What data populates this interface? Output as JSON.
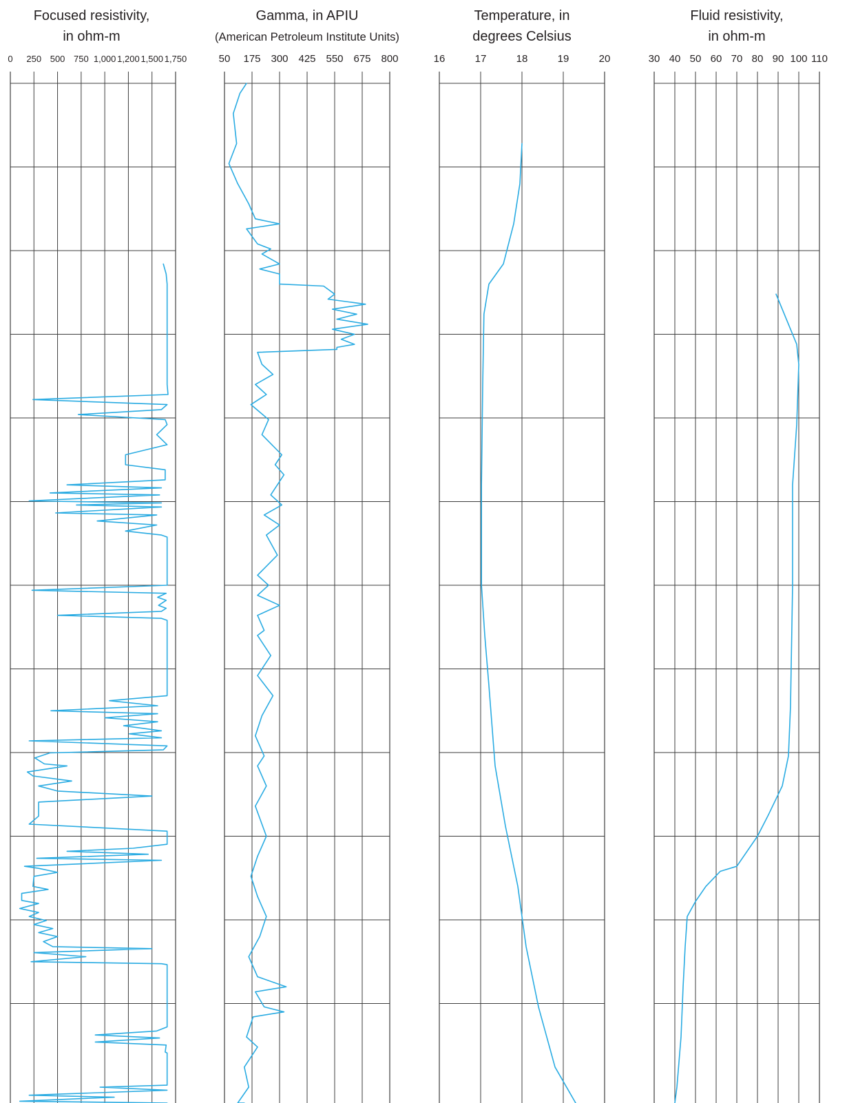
{
  "colors": {
    "curve": "#29abe2",
    "grid": "#3d3d3d",
    "text": "#231f20"
  },
  "chart_data": [
    {
      "type": "line",
      "title_lines": [
        "Focused resistivity,",
        "in ohm-m"
      ],
      "subtitle": "",
      "xlim": [
        0,
        1750
      ],
      "tick_labels": [
        "0",
        "250",
        "500",
        "750",
        "1,000",
        "1,200",
        "1,500",
        "1,750"
      ],
      "grid_rows": 12,
      "grid": true,
      "series": [
        {
          "points": [
            [
              1620,
              0.18
            ],
            [
              1650,
              0.19
            ],
            [
              1660,
              0.2
            ],
            [
              1660,
              0.3
            ],
            [
              1670,
              0.31
            ],
            [
              240,
              0.315
            ],
            [
              1660,
              0.32
            ],
            [
              1600,
              0.325
            ],
            [
              720,
              0.33
            ],
            [
              1640,
              0.335
            ],
            [
              1660,
              0.34
            ],
            [
              1550,
              0.35
            ],
            [
              1660,
              0.36
            ],
            [
              1220,
              0.37
            ],
            [
              1220,
              0.38
            ],
            [
              1640,
              0.385
            ],
            [
              1640,
              0.395
            ],
            [
              600,
              0.4
            ],
            [
              1600,
              0.403
            ],
            [
              420,
              0.408
            ],
            [
              1580,
              0.41
            ],
            [
              200,
              0.416
            ],
            [
              1600,
              0.418
            ],
            [
              700,
              0.42
            ],
            [
              1600,
              0.422
            ],
            [
              480,
              0.428
            ],
            [
              1550,
              0.43
            ],
            [
              920,
              0.436
            ],
            [
              1550,
              0.44
            ],
            [
              1220,
              0.446
            ],
            [
              1600,
              0.45
            ],
            [
              1660,
              0.452
            ],
            [
              1660,
              0.5
            ],
            [
              230,
              0.505
            ],
            [
              1650,
              0.508
            ],
            [
              1560,
              0.512
            ],
            [
              1650,
              0.515
            ],
            [
              1570,
              0.52
            ],
            [
              1650,
              0.523
            ],
            [
              1600,
              0.526
            ],
            [
              500,
              0.53
            ],
            [
              1600,
              0.533
            ],
            [
              1660,
              0.535
            ],
            [
              1660,
              0.61
            ],
            [
              1050,
              0.615
            ],
            [
              1560,
              0.62
            ],
            [
              430,
              0.625
            ],
            [
              1560,
              0.628
            ],
            [
              1000,
              0.632
            ],
            [
              1560,
              0.636
            ],
            [
              1200,
              0.64
            ],
            [
              1600,
              0.645
            ],
            [
              1260,
              0.648
            ],
            [
              1600,
              0.652
            ],
            [
              200,
              0.655
            ],
            [
              1660,
              0.66
            ],
            [
              1620,
              0.664
            ],
            [
              420,
              0.667
            ],
            [
              260,
              0.672
            ],
            [
              360,
              0.678
            ],
            [
              600,
              0.68
            ],
            [
              180,
              0.686
            ],
            [
              240,
              0.69
            ],
            [
              650,
              0.695
            ],
            [
              300,
              0.7
            ],
            [
              500,
              0.705
            ],
            [
              1500,
              0.71
            ],
            [
              300,
              0.716
            ],
            [
              300,
              0.73
            ],
            [
              200,
              0.738
            ],
            [
              1660,
              0.745
            ],
            [
              1660,
              0.758
            ],
            [
              1300,
              0.762
            ],
            [
              600,
              0.765
            ],
            [
              1460,
              0.768
            ],
            [
              280,
              0.772
            ],
            [
              1600,
              0.774
            ],
            [
              150,
              0.78
            ],
            [
              300,
              0.782
            ],
            [
              500,
              0.786
            ],
            [
              250,
              0.79
            ],
            [
              240,
              0.8
            ],
            [
              400,
              0.803
            ],
            [
              120,
              0.807
            ],
            [
              120,
              0.814
            ],
            [
              300,
              0.817
            ],
            [
              100,
              0.822
            ],
            [
              300,
              0.826
            ],
            [
              200,
              0.83
            ],
            [
              380,
              0.834
            ],
            [
              250,
              0.838
            ],
            [
              450,
              0.842
            ],
            [
              300,
              0.846
            ],
            [
              500,
              0.85
            ],
            [
              350,
              0.855
            ],
            [
              450,
              0.86
            ],
            [
              1500,
              0.862
            ],
            [
              250,
              0.866
            ],
            [
              800,
              0.87
            ],
            [
              220,
              0.875
            ],
            [
              1600,
              0.877
            ],
            [
              1660,
              0.878
            ],
            [
              1660,
              0.94
            ],
            [
              1550,
              0.944
            ],
            [
              900,
              0.948
            ],
            [
              1580,
              0.951
            ],
            [
              900,
              0.955
            ],
            [
              1650,
              0.958
            ],
            [
              1640,
              0.965
            ],
            [
              1660,
              0.966
            ],
            [
              1660,
              0.998
            ],
            [
              950,
              1.0
            ],
            [
              1660,
              1.003
            ],
            [
              200,
              1.008
            ],
            [
              1100,
              1.01
            ],
            [
              100,
              1.014
            ],
            [
              1660,
              1.018
            ],
            [
              1660,
              1.04
            ]
          ]
        }
      ]
    },
    {
      "type": "line",
      "title_lines": [
        "Gamma, in APIU"
      ],
      "subtitle": "(American Petroleum Institute Units)",
      "xlim": [
        50,
        800
      ],
      "tick_labels": [
        "50",
        "175",
        "300",
        "425",
        "550",
        "675",
        "800"
      ],
      "grid_rows": 12,
      "grid": true,
      "series": [
        {
          "points": [
            [
              150,
              0.0
            ],
            [
              120,
              0.01
            ],
            [
              90,
              0.03
            ],
            [
              105,
              0.06
            ],
            [
              70,
              0.08
            ],
            [
              110,
              0.1
            ],
            [
              160,
              0.12
            ],
            [
              190,
              0.135
            ],
            [
              300,
              0.14
            ],
            [
              150,
              0.145
            ],
            [
              200,
              0.16
            ],
            [
              260,
              0.165
            ],
            [
              220,
              0.17
            ],
            [
              300,
              0.18
            ],
            [
              210,
              0.185
            ],
            [
              300,
              0.19
            ],
            [
              300,
              0.2
            ],
            [
              500,
              0.202
            ],
            [
              550,
              0.21
            ],
            [
              520,
              0.215
            ],
            [
              690,
              0.22
            ],
            [
              540,
              0.225
            ],
            [
              650,
              0.23
            ],
            [
              560,
              0.235
            ],
            [
              700,
              0.24
            ],
            [
              540,
              0.245
            ],
            [
              640,
              0.25
            ],
            [
              580,
              0.255
            ],
            [
              640,
              0.26
            ],
            [
              560,
              0.263
            ],
            [
              560,
              0.265
            ],
            [
              200,
              0.268
            ],
            [
              220,
              0.28
            ],
            [
              270,
              0.29
            ],
            [
              190,
              0.3
            ],
            [
              240,
              0.31
            ],
            [
              170,
              0.32
            ],
            [
              250,
              0.335
            ],
            [
              220,
              0.35
            ],
            [
              310,
              0.37
            ],
            [
              280,
              0.38
            ],
            [
              320,
              0.39
            ],
            [
              260,
              0.41
            ],
            [
              310,
              0.42
            ],
            [
              230,
              0.43
            ],
            [
              300,
              0.44
            ],
            [
              240,
              0.45
            ],
            [
              290,
              0.47
            ],
            [
              200,
              0.49
            ],
            [
              250,
              0.5
            ],
            [
              200,
              0.51
            ],
            [
              300,
              0.52
            ],
            [
              200,
              0.53
            ],
            [
              230,
              0.545
            ],
            [
              200,
              0.55
            ],
            [
              260,
              0.57
            ],
            [
              200,
              0.59
            ],
            [
              270,
              0.61
            ],
            [
              220,
              0.63
            ],
            [
              190,
              0.65
            ],
            [
              230,
              0.67
            ],
            [
              200,
              0.68
            ],
            [
              240,
              0.7
            ],
            [
              190,
              0.72
            ],
            [
              240,
              0.75
            ],
            [
              200,
              0.77
            ],
            [
              170,
              0.79
            ],
            [
              200,
              0.81
            ],
            [
              240,
              0.83
            ],
            [
              210,
              0.85
            ],
            [
              160,
              0.87
            ],
            [
              200,
              0.89
            ],
            [
              330,
              0.9
            ],
            [
              190,
              0.905
            ],
            [
              230,
              0.92
            ],
            [
              320,
              0.925
            ],
            [
              180,
              0.93
            ],
            [
              150,
              0.95
            ],
            [
              200,
              0.96
            ],
            [
              140,
              0.98
            ],
            [
              160,
              1.0
            ],
            [
              110,
              1.02
            ],
            [
              140,
              1.04
            ]
          ]
        }
      ]
    },
    {
      "type": "line",
      "title_lines": [
        "Temperature, in",
        "degrees Celsius"
      ],
      "subtitle": "",
      "xlim": [
        16,
        20
      ],
      "tick_labels": [
        "16",
        "17",
        "18",
        "19",
        "20"
      ],
      "grid_rows": 12,
      "grid": true,
      "series": [
        {
          "points": [
            [
              18.0,
              0.06
            ],
            [
              17.95,
              0.1
            ],
            [
              17.8,
              0.14
            ],
            [
              17.55,
              0.18
            ],
            [
              17.2,
              0.2
            ],
            [
              17.08,
              0.23
            ],
            [
              17.05,
              0.3
            ],
            [
              17.02,
              0.4
            ],
            [
              17.02,
              0.5
            ],
            [
              17.1,
              0.55
            ],
            [
              17.2,
              0.6
            ],
            [
              17.35,
              0.68
            ],
            [
              17.6,
              0.74
            ],
            [
              17.9,
              0.8
            ],
            [
              18.1,
              0.86
            ],
            [
              18.4,
              0.92
            ],
            [
              18.8,
              0.98
            ],
            [
              19.3,
              1.04
            ]
          ]
        }
      ]
    },
    {
      "type": "line",
      "title_lines": [
        "Fluid resistivity,",
        "in ohm-m"
      ],
      "subtitle": "",
      "xlim": [
        30,
        110
      ],
      "tick_labels": [
        "30",
        "40",
        "50",
        "60",
        "70",
        "80",
        "90",
        "100",
        "110"
      ],
      "grid_rows": 12,
      "grid": true,
      "series": [
        {
          "points": [
            [
              89,
              0.21
            ],
            [
              93,
              0.23
            ],
            [
              96,
              0.245
            ],
            [
              99,
              0.26
            ],
            [
              100,
              0.28
            ],
            [
              99,
              0.34
            ],
            [
              97,
              0.4
            ],
            [
              97,
              0.5
            ],
            [
              96,
              0.62
            ],
            [
              95,
              0.67
            ],
            [
              92,
              0.7
            ],
            [
              85,
              0.73
            ],
            [
              80,
              0.75
            ],
            [
              70,
              0.78
            ],
            [
              62,
              0.785
            ],
            [
              55,
              0.8
            ],
            [
              50,
              0.815
            ],
            [
              46,
              0.83
            ],
            [
              45,
              0.86
            ],
            [
              44,
              0.9
            ],
            [
              43,
              0.95
            ],
            [
              41,
              1.0
            ],
            [
              40,
              1.04
            ]
          ]
        }
      ]
    }
  ]
}
